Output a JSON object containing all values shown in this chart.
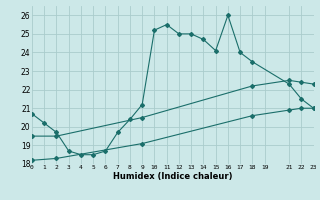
{
  "title": "",
  "xlabel": "Humidex (Indice chaleur)",
  "bg_color": "#cce8e8",
  "grid_color": "#aacccc",
  "line_color": "#1a6e6a",
  "line1_x": [
    0,
    1,
    2,
    3,
    4,
    5,
    6,
    7,
    8,
    9,
    10,
    11,
    12,
    13,
    14,
    15,
    16,
    17,
    18,
    21,
    22,
    23
  ],
  "line1_y": [
    20.7,
    20.2,
    19.7,
    18.7,
    18.5,
    18.5,
    18.7,
    19.7,
    20.4,
    21.2,
    25.2,
    25.5,
    25.0,
    25.0,
    24.7,
    24.1,
    26.0,
    24.0,
    23.5,
    22.3,
    21.5,
    21.0
  ],
  "line2_x": [
    0,
    2,
    9,
    18,
    21,
    22,
    23
  ],
  "line2_y": [
    19.5,
    19.5,
    20.5,
    22.2,
    22.5,
    22.4,
    22.3
  ],
  "line3_x": [
    0,
    2,
    9,
    18,
    21,
    22,
    23
  ],
  "line3_y": [
    18.2,
    18.3,
    19.1,
    20.6,
    20.9,
    21.0,
    21.0
  ],
  "xlim": [
    0,
    23
  ],
  "ylim": [
    18,
    26.5
  ],
  "xticks": [
    0,
    1,
    2,
    3,
    4,
    5,
    6,
    7,
    8,
    9,
    10,
    11,
    12,
    13,
    14,
    15,
    16,
    17,
    18,
    19,
    21,
    22,
    23
  ],
  "yticks": [
    18,
    19,
    20,
    21,
    22,
    23,
    24,
    25,
    26
  ],
  "markersize": 2.0,
  "linewidth": 0.8
}
